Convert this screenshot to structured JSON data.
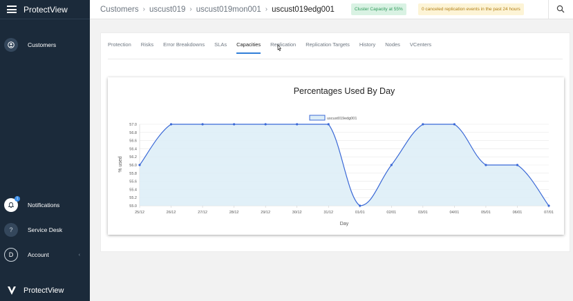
{
  "app": {
    "brand": "ProtectView",
    "footer_brand": "ProtectView"
  },
  "sidebar": {
    "customers_label": "Customers",
    "notifications_label": "Notifications",
    "notifications_badge": "1",
    "service_desk_label": "Service Desk",
    "account_label": "Account",
    "account_initial": "D"
  },
  "breadcrumb": {
    "items": [
      "Customers",
      "uscust019",
      "uscust019mon001",
      "uscust019edg001"
    ]
  },
  "status": {
    "capacity": "Cluster Capacity at 55%",
    "replication": "0 canceled replication events in the past 24 hours"
  },
  "tabs": [
    "Protection",
    "Risks",
    "Error Breakdowns",
    "SLAs",
    "Capacities",
    "Replication",
    "Replication Targets",
    "History",
    "Nodes",
    "VCenters"
  ],
  "active_tab": "Capacities",
  "chart_data": {
    "type": "area",
    "title": "Percentages Used By Day",
    "xlabel": "Day",
    "ylabel": "% used",
    "ylim": [
      55.0,
      57.0
    ],
    "yticks": [
      "57.0",
      "56.8",
      "56.6",
      "56.4",
      "56.2",
      "56.0",
      "55.8",
      "55.6",
      "55.4",
      "55.2",
      "55.0"
    ],
    "categories": [
      "25/12",
      "26/12",
      "27/12",
      "28/12",
      "29/12",
      "30/12",
      "31/12",
      "01/01",
      "02/01",
      "03/01",
      "04/01",
      "05/01",
      "06/01",
      "07/01"
    ],
    "legend_position": "top",
    "grid": true,
    "series": [
      {
        "name": "uscust019edg001",
        "color": "#3867d6",
        "fill": "#dcedf7",
        "values": [
          56.0,
          57.0,
          57.0,
          57.0,
          57.0,
          57.0,
          57.0,
          55.0,
          56.0,
          57.0,
          57.0,
          56.0,
          56.0,
          55.0
        ]
      }
    ]
  }
}
